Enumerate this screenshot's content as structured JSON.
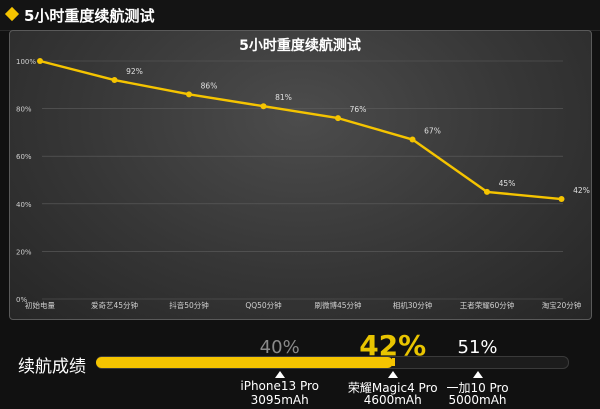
{
  "header": {
    "title": "5小时重度续航测试"
  },
  "chart_data": {
    "type": "line",
    "title": "5小时重度续航测试",
    "categories": [
      "初始电量",
      "爱奇艺45分钟",
      "抖音50分钟",
      "QQ50分钟",
      "刷微博45分钟",
      "相机30分钟",
      "王者荣耀60分钟",
      "淘宝20分钟"
    ],
    "values": [
      100,
      92,
      86,
      81,
      76,
      67,
      45,
      42
    ],
    "data_labels": [
      "",
      "92%",
      "86%",
      "81%",
      "76%",
      "67%",
      "45%",
      "42%"
    ],
    "yticks": [
      "0%",
      "20%",
      "40%",
      "60%",
      "80%",
      "100%"
    ],
    "ylim": [
      0,
      100
    ],
    "line_color": "#f5c400",
    "grid": true
  },
  "endurance": {
    "title": "续航成绩",
    "bar_color": "#f5c400",
    "fill_fraction": 0.63,
    "results": [
      {
        "percent": "40%",
        "device": "iPhone13 Pro",
        "battery": "3095mAh",
        "position": 0.39
      },
      {
        "percent": "42%",
        "device": "荣耀Magic4 Pro",
        "battery": "4600mAh",
        "position": 0.63
      },
      {
        "percent": "51%",
        "device": "一加10 Pro",
        "battery": "5000mAh",
        "position": 0.81
      }
    ]
  }
}
